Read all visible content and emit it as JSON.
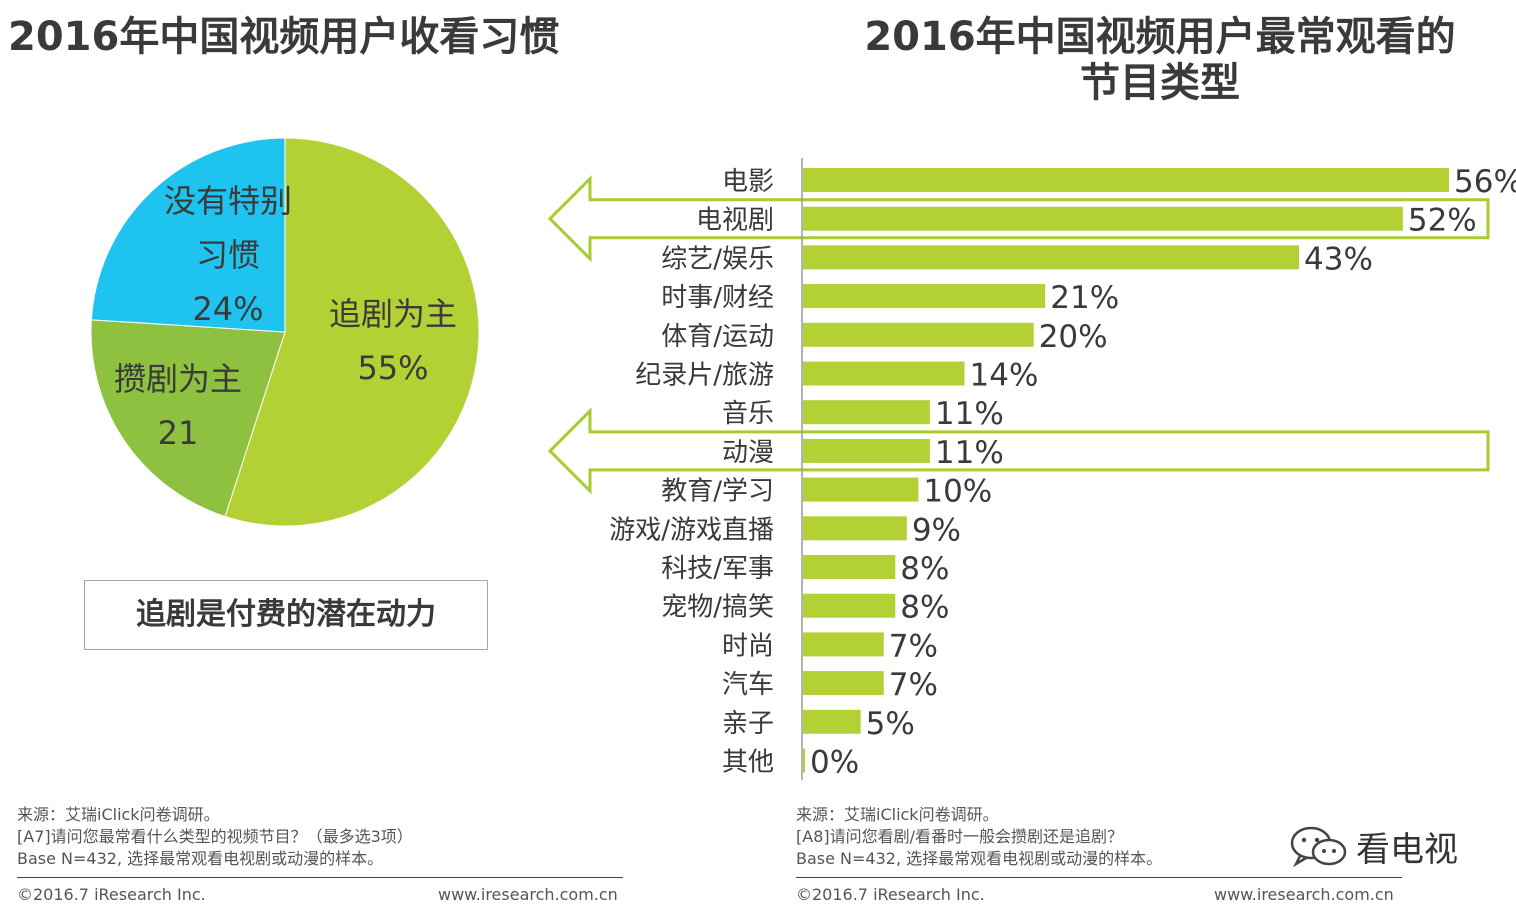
{
  "left_title": "2016年中国视频用户收看习惯",
  "right_title_line1": "2016年中国视频用户最常观看的",
  "right_title_line2": "节目类型",
  "callout": "追剧是付费的潜在动力",
  "chart_data": [
    {
      "type": "pie",
      "slices": [
        {
          "label": "追剧为主",
          "value": 55,
          "value_text": "55%",
          "color": "#b3d135"
        },
        {
          "label": "攒剧为主",
          "value": 21,
          "value_text": "21",
          "color": "#8dc13f"
        },
        {
          "label": "没有特别习惯",
          "label_line1": "没有特别",
          "label_line2": "习惯",
          "value": 24,
          "value_text": "24%",
          "color": "#1fc3f0"
        }
      ]
    },
    {
      "type": "bar",
      "orientation": "horizontal",
      "categories": [
        "电影",
        "电视剧",
        "综艺/娱乐",
        "时事/财经",
        "体育/运动",
        "纪录片/旅游",
        "音乐",
        "动漫",
        "教育/学习",
        "游戏/游戏直播",
        "科技/军事",
        "宠物/搞笑",
        "时尚",
        "汽车",
        "亲子",
        "其他"
      ],
      "values": [
        56,
        52,
        43,
        21,
        20,
        14,
        11,
        11,
        10,
        9,
        8,
        8,
        7,
        7,
        5,
        0
      ],
      "value_labels": [
        "56%",
        "52%",
        "43%",
        "21%",
        "20%",
        "14%",
        "11%",
        "11%",
        "10%",
        "9%",
        "8%",
        "8%",
        "7%",
        "7%",
        "5%",
        "0%"
      ],
      "highlighted": [
        "电视剧",
        "动漫"
      ],
      "bar_color": "#b3d135",
      "xlim": [
        0,
        56
      ]
    }
  ],
  "footer_left": {
    "source": "来源：艾瑞iClick问卷调研。",
    "question": "[A7]请问您最常看什么类型的视频节目？（最多选3项）",
    "base": "Base N=432, 选择最常观看电视剧或动漫的样本。",
    "copyright": "©2016.7 iResearch Inc.",
    "url": "www.iresearch.com.cn"
  },
  "footer_right": {
    "source": "来源：艾瑞iClick问卷调研。",
    "question": "[A8]请问您看剧/看番时一般会攒剧还是追剧？",
    "base": "Base N=432, 选择最常观看电视剧或动漫的样本。",
    "copyright": "©2016.7 iResearch Inc.",
    "url": "www.iresearch.com.cn"
  },
  "watermark": {
    "icon": "wechat-icon",
    "text": "看电视"
  }
}
